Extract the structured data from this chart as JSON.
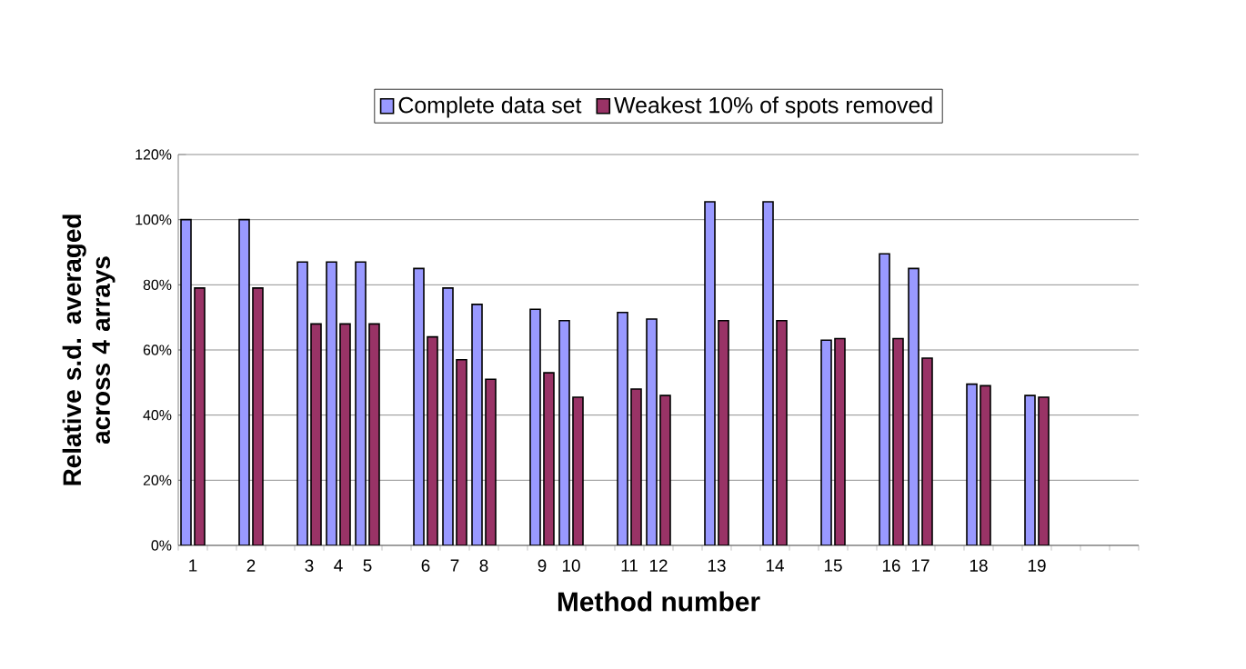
{
  "chart_data": {
    "type": "bar",
    "xlabel": "Method number",
    "ylabel": "Relative s.d. averaged across 4 arrays",
    "categories": [
      "1",
      null,
      "2",
      null,
      "3",
      "4",
      "5",
      null,
      "6",
      "7",
      "8",
      null,
      "9",
      "10",
      null,
      "11",
      "12",
      null,
      "13",
      null,
      "14",
      null,
      "15",
      null,
      "16",
      "17",
      null,
      "18",
      null,
      "19",
      null,
      null,
      null
    ],
    "series": [
      {
        "name": "Complete data set",
        "color": "#9999ff",
        "values": [
          100,
          null,
          100,
          null,
          87,
          87,
          87,
          null,
          85,
          79,
          74,
          null,
          72.5,
          69,
          null,
          71.5,
          69.5,
          null,
          105.5,
          null,
          105.5,
          null,
          63,
          null,
          89.5,
          85,
          null,
          49.5,
          null,
          46,
          null,
          null,
          null
        ]
      },
      {
        "name": "Weakest 10% of spots removed",
        "color": "#993366",
        "values": [
          79,
          null,
          79,
          null,
          68,
          68,
          68,
          null,
          64,
          57,
          51,
          null,
          53,
          45.5,
          null,
          48,
          46,
          null,
          69,
          null,
          69,
          null,
          63.5,
          null,
          63.5,
          57.5,
          null,
          49,
          null,
          45.5,
          null,
          null,
          null
        ]
      }
    ],
    "ylim": [
      0,
      120
    ],
    "yticks": [
      {
        "value": 0,
        "label": "0%"
      },
      {
        "value": 20,
        "label": "20%"
      },
      {
        "value": 40,
        "label": "40%"
      },
      {
        "value": 60,
        "label": "60%"
      },
      {
        "value": 80,
        "label": "80%"
      },
      {
        "value": 100,
        "label": "100%"
      },
      {
        "value": 120,
        "label": "120%"
      }
    ],
    "grid": "y",
    "legend": "top"
  }
}
